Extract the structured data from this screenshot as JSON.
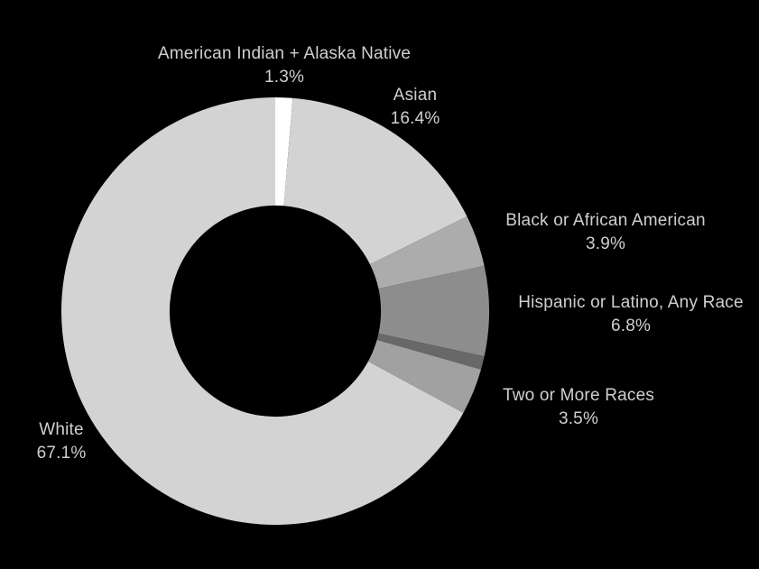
{
  "page": {
    "background_color": "#000000",
    "label_text_color": "#cfcfcf"
  },
  "chart_data": {
    "type": "pie",
    "variant": "donut",
    "title": "",
    "legend": "none",
    "start_angle_deg": 0,
    "direction": "clockwise",
    "inner_radius_ratio": 0.494,
    "segments": [
      {
        "label": "American Indian + Alaska Native",
        "value": 1.3,
        "pct_label": "1.3%",
        "color": "#ffffff"
      },
      {
        "label": "Asian",
        "value": 16.4,
        "pct_label": "16.4%",
        "color": "#d3d3d3"
      },
      {
        "label": "Black or African American",
        "value": 3.9,
        "pct_label": "3.9%",
        "color": "#acacac"
      },
      {
        "label": "Hispanic or Latino, Any Race",
        "value": 6.8,
        "pct_label": "6.8%",
        "color": "#8d8d8d"
      },
      {
        "label": "",
        "value": 1.0,
        "pct_label": "",
        "color": "#686868"
      },
      {
        "label": "Two or More Races",
        "value": 3.5,
        "pct_label": "3.5%",
        "color": "#a1a1a1"
      },
      {
        "label": "White",
        "value": 67.1,
        "pct_label": "67.1%",
        "color": "#d3d3d3"
      }
    ]
  }
}
